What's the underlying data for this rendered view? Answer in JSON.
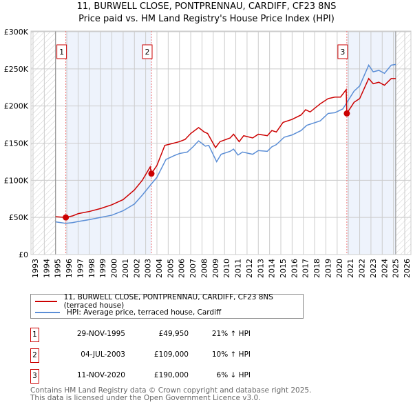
{
  "title_line1": "11, BURWELL CLOSE, PONTPRENNAU, CARDIFF, CF23 8NS",
  "title_line2": "Price paid vs. HM Land Registry's House Price Index (HPI)",
  "colors": {
    "price": "#cc0000",
    "hpi": "#5b8ed6",
    "band": "#eef3fc",
    "grid": "#cccccc"
  },
  "chart_data": {
    "type": "line",
    "xlim": [
      1993,
      2026
    ],
    "ylim": [
      0,
      300000
    ],
    "x_ticks": [
      "1993",
      "1994",
      "1995",
      "1996",
      "1997",
      "1998",
      "1999",
      "2000",
      "2001",
      "2002",
      "2003",
      "2004",
      "2005",
      "2006",
      "2007",
      "2008",
      "2009",
      "2010",
      "2011",
      "2012",
      "2013",
      "2014",
      "2015",
      "2016",
      "2017",
      "2018",
      "2019",
      "2020",
      "2021",
      "2022",
      "2023",
      "2024",
      "2025",
      "2026"
    ],
    "y_ticks": [
      {
        "v": 0,
        "label": "£0"
      },
      {
        "v": 50000,
        "label": "£50K"
      },
      {
        "v": 100000,
        "label": "£100K"
      },
      {
        "v": 150000,
        "label": "£150K"
      },
      {
        "v": 200000,
        "label": "£200K"
      },
      {
        "v": 250000,
        "label": "£250K"
      },
      {
        "v": 300000,
        "label": "£300K"
      }
    ],
    "hatched_before": 1995,
    "hatched_after": 2025.2,
    "shaded_bands": [
      [
        1995.91,
        2003.51
      ],
      [
        2020.86,
        2025.2
      ]
    ],
    "series": [
      {
        "name": "11, BURWELL CLOSE, PONTPRENNAU, CARDIFF, CF23 8NS (terraced house)",
        "key": "price",
        "points": [
          [
            1995,
            51000
          ],
          [
            1995.9,
            49950
          ],
          [
            1996.5,
            52000
          ],
          [
            1997,
            55000
          ],
          [
            1998,
            58000
          ],
          [
            1999,
            62000
          ],
          [
            2000,
            67000
          ],
          [
            2001,
            74000
          ],
          [
            2002,
            87000
          ],
          [
            2002.7,
            100000
          ],
          [
            2003.4,
            118000
          ],
          [
            2003.51,
            109000
          ],
          [
            2004,
            120000
          ],
          [
            2004.7,
            147000
          ],
          [
            2005.5,
            150000
          ],
          [
            2006,
            152000
          ],
          [
            2006.5,
            155000
          ],
          [
            2007,
            163000
          ],
          [
            2007.7,
            171000
          ],
          [
            2008.2,
            165000
          ],
          [
            2008.5,
            163000
          ],
          [
            2009.2,
            144000
          ],
          [
            2009.6,
            152000
          ],
          [
            2010.5,
            157000
          ],
          [
            2010.8,
            162000
          ],
          [
            2011.3,
            152000
          ],
          [
            2011.7,
            160000
          ],
          [
            2012.5,
            157000
          ],
          [
            2013,
            162000
          ],
          [
            2013.8,
            160000
          ],
          [
            2014.2,
            167000
          ],
          [
            2014.6,
            165000
          ],
          [
            2015.2,
            178000
          ],
          [
            2016,
            182000
          ],
          [
            2016.8,
            188000
          ],
          [
            2017.2,
            195000
          ],
          [
            2017.6,
            192000
          ],
          [
            2018.5,
            203000
          ],
          [
            2019.2,
            210000
          ],
          [
            2019.8,
            212000
          ],
          [
            2020.3,
            212000
          ],
          [
            2020.8,
            222000
          ],
          [
            2020.86,
            190000
          ],
          [
            2021.5,
            205000
          ],
          [
            2022,
            210000
          ],
          [
            2022.8,
            237000
          ],
          [
            2023.2,
            230000
          ],
          [
            2023.7,
            232000
          ],
          [
            2024.2,
            228000
          ],
          [
            2024.8,
            237000
          ],
          [
            2025.2,
            237000
          ]
        ]
      },
      {
        "name": "HPI: Average price, terraced house, Cardiff",
        "key": "hpi",
        "points": [
          [
            1995,
            44000
          ],
          [
            1995.9,
            42000
          ],
          [
            1996.5,
            43000
          ],
          [
            1997,
            44500
          ],
          [
            1998,
            47000
          ],
          [
            1999,
            50000
          ],
          [
            2000,
            53000
          ],
          [
            2001,
            59000
          ],
          [
            2002,
            68000
          ],
          [
            2002.7,
            80000
          ],
          [
            2003.5,
            95000
          ],
          [
            2004,
            104000
          ],
          [
            2004.8,
            128000
          ],
          [
            2005.5,
            133000
          ],
          [
            2006,
            136000
          ],
          [
            2006.7,
            138000
          ],
          [
            2007.2,
            145000
          ],
          [
            2007.7,
            153000
          ],
          [
            2008.3,
            146000
          ],
          [
            2008.6,
            147000
          ],
          [
            2009.3,
            125000
          ],
          [
            2009.7,
            135000
          ],
          [
            2010.5,
            139000
          ],
          [
            2010.8,
            142000
          ],
          [
            2011.2,
            134000
          ],
          [
            2011.6,
            138000
          ],
          [
            2012.5,
            135000
          ],
          [
            2013,
            140000
          ],
          [
            2013.8,
            139000
          ],
          [
            2014.2,
            145000
          ],
          [
            2014.6,
            148000
          ],
          [
            2015.3,
            158000
          ],
          [
            2016,
            161000
          ],
          [
            2016.8,
            167000
          ],
          [
            2017.3,
            174000
          ],
          [
            2018.5,
            180000
          ],
          [
            2019.2,
            190000
          ],
          [
            2019.8,
            191000
          ],
          [
            2020.5,
            196000
          ],
          [
            2021.5,
            220000
          ],
          [
            2022,
            227000
          ],
          [
            2022.8,
            255000
          ],
          [
            2023.2,
            246000
          ],
          [
            2023.7,
            248000
          ],
          [
            2024.2,
            244000
          ],
          [
            2024.8,
            255000
          ],
          [
            2025.2,
            256000
          ]
        ]
      }
    ],
    "markers": [
      {
        "label": "1",
        "x": 1995.91,
        "y": 49950
      },
      {
        "label": "2",
        "x": 2003.51,
        "y": 109000
      },
      {
        "label": "3",
        "x": 2020.86,
        "y": 190000
      }
    ]
  },
  "legend": {
    "price": "11, BURWELL CLOSE, PONTPRENNAU, CARDIFF, CF23 8NS (terraced house)",
    "hpi": "HPI: Average price, terraced house, Cardiff"
  },
  "sales": [
    {
      "num": "1",
      "date": "29-NOV-1995",
      "price": "£49,950",
      "hpi": "21% ↑ HPI"
    },
    {
      "num": "2",
      "date": "04-JUL-2003",
      "price": "£109,000",
      "hpi": "10% ↑ HPI"
    },
    {
      "num": "3",
      "date": "11-NOV-2020",
      "price": "£190,000",
      "hpi": "6% ↓ HPI"
    }
  ],
  "footer_line1": "Contains HM Land Registry data © Crown copyright and database right 2025.",
  "footer_line2": "This data is licensed under the Open Government Licence v3.0."
}
